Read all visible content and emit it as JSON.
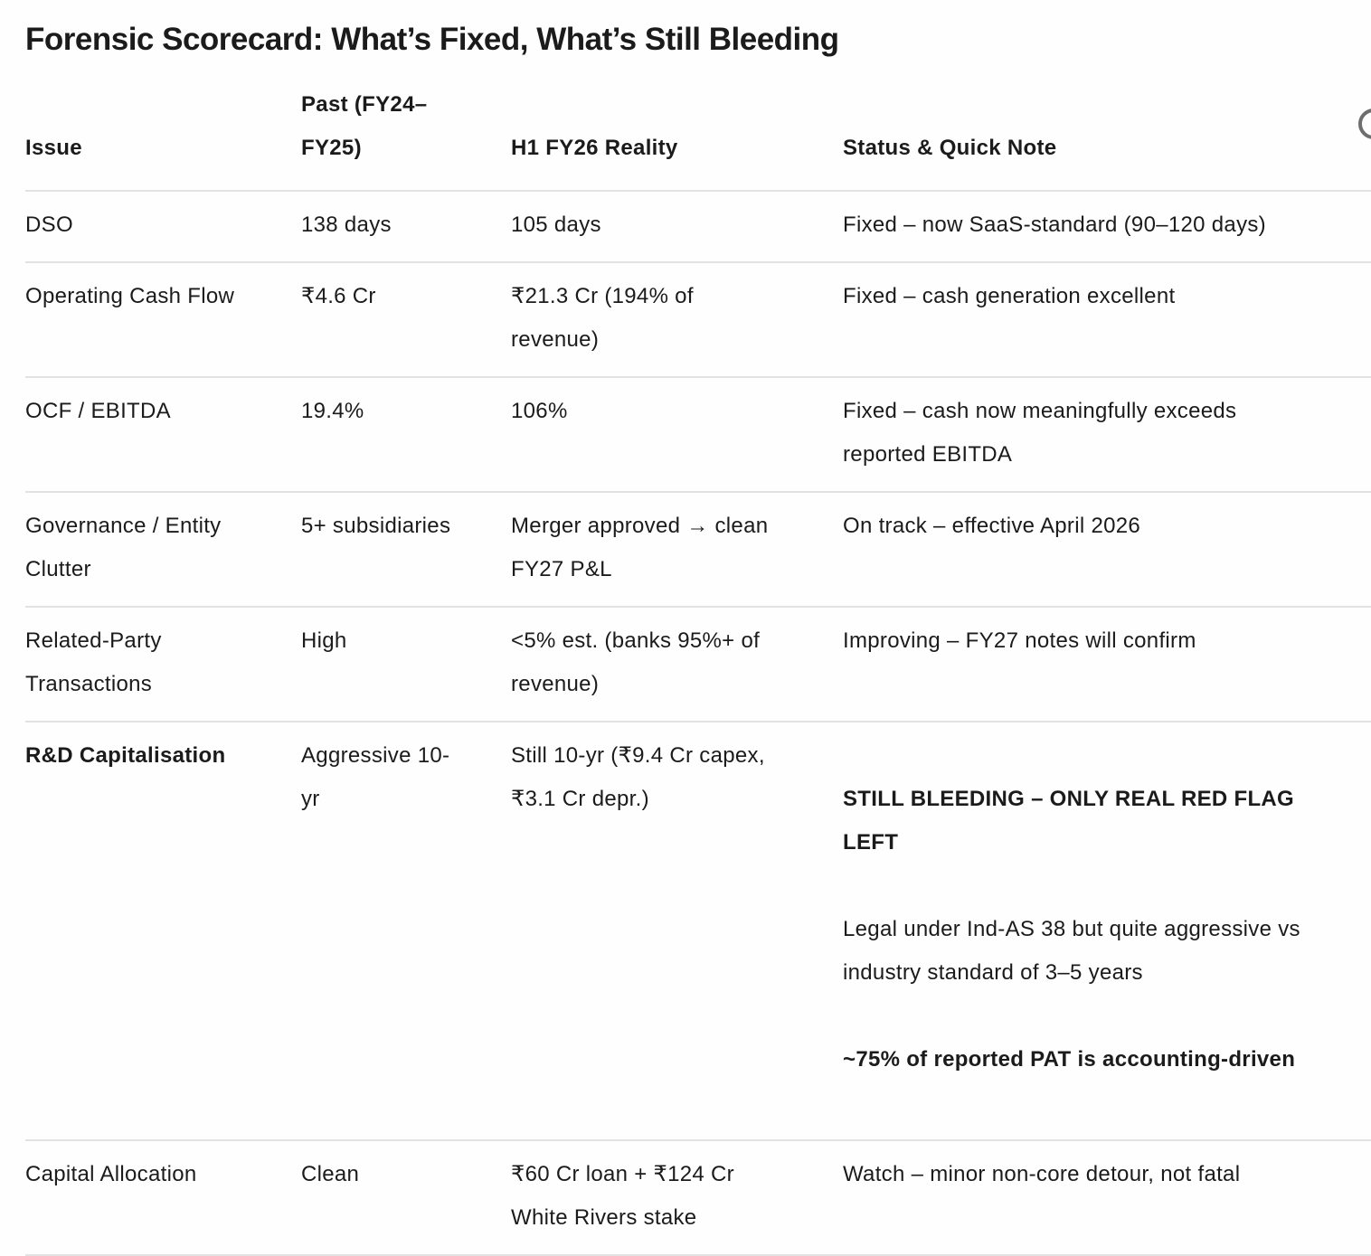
{
  "page": {
    "title": "Forensic Scorecard: What’s Fixed, What’s Still Bleeding"
  },
  "colors": {
    "text": "#1b1b1b",
    "separator": "#e2e2e2",
    "background": "#fefefe",
    "icon_gray": "#6e6e6e"
  },
  "icons": {
    "top_right": "partial-circle"
  },
  "table": {
    "columns": {
      "issue": "Issue",
      "past": "Past (FY24–\nFY25)",
      "h1": "H1 FY26 Reality",
      "status": "Status & Quick Note"
    },
    "rows": [
      {
        "issue": "DSO",
        "past": "138 days",
        "h1": "105 days",
        "status": "Fixed – now SaaS-standard (90–120 days)"
      },
      {
        "issue": "Operating Cash Flow",
        "past": "₹4.6 Cr",
        "h1": "₹21.3 Cr (194% of\nrevenue)",
        "status": "Fixed – cash generation excellent"
      },
      {
        "issue": "OCF / EBITDA",
        "past": "19.4%",
        "h1": "106%",
        "status": "Fixed – cash now meaningfully exceeds\nreported EBITDA"
      },
      {
        "issue": "Governance / Entity\nClutter",
        "past": "5+ subsidiaries",
        "h1": "Merger approved → clean\nFY27 P&L",
        "status": "On track – effective April 2026"
      },
      {
        "issue": "Related-Party\nTransactions",
        "past": "High",
        "h1": "<5% est. (banks 95%+ of\nrevenue)",
        "status": "Improving – FY27 notes will confirm"
      },
      {
        "issue": "R&D Capitalisation",
        "past": "Aggressive 10-\nyr",
        "h1": "Still 10-yr (₹9.4 Cr capex,\n₹3.1 Cr depr.)",
        "status_headline": "STILL BLEEDING – ONLY REAL RED FLAG\nLEFT",
        "status_detail": "Legal under Ind-AS 38 but quite aggressive vs\nindustry standard of 3–5 years",
        "status_footnote": "~75% of reported PAT is accounting-driven"
      },
      {
        "issue": "Capital Allocation",
        "past": "Clean",
        "h1": "₹60 Cr loan + ₹124 Cr\nWhite Rivers stake",
        "status": "Watch – minor non-core detour, not fatal"
      }
    ]
  }
}
